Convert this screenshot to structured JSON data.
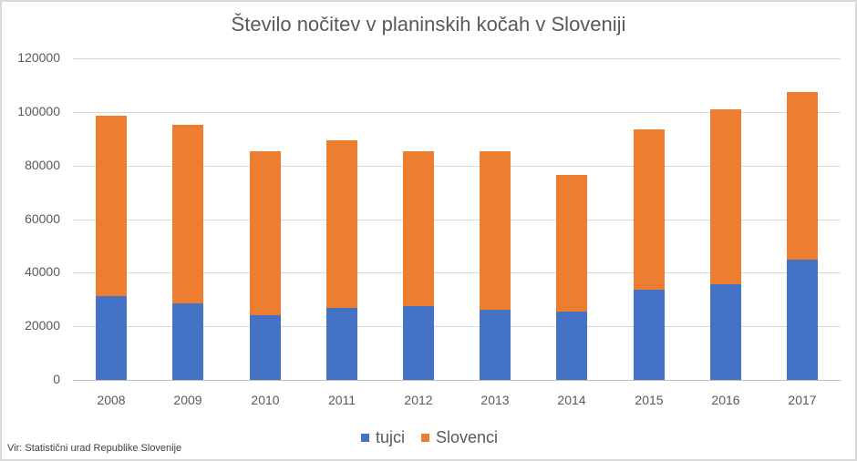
{
  "chart_data": {
    "type": "bar",
    "stacked": true,
    "title": "Število nočitev v planinskih kočah v Sloveniji",
    "xlabel": "",
    "ylabel": "",
    "categories": [
      "2008",
      "2009",
      "2010",
      "2011",
      "2012",
      "2013",
      "2014",
      "2015",
      "2016",
      "2017"
    ],
    "series": [
      {
        "name": "tujci",
        "color": "#4472C4",
        "values": [
          31200,
          28400,
          24000,
          26700,
          27600,
          26300,
          25600,
          33700,
          35800,
          44800
        ]
      },
      {
        "name": "Slovenci",
        "color": "#ED7D31",
        "values": [
          67300,
          66800,
          61200,
          62800,
          57800,
          59100,
          51000,
          59800,
          65100,
          62700
        ]
      }
    ],
    "ylim": [
      0,
      120000
    ],
    "yticks": [
      "0",
      "20000",
      "40000",
      "60000",
      "80000",
      "100000",
      "120000"
    ],
    "grid": true,
    "legend_position": "bottom"
  },
  "legend": {
    "items": [
      {
        "label": "tujci",
        "color": "#4472C4"
      },
      {
        "label": "Slovenci",
        "color": "#ED7D31"
      }
    ]
  },
  "source": "Vir: Statistični urad Republike Slovenije"
}
